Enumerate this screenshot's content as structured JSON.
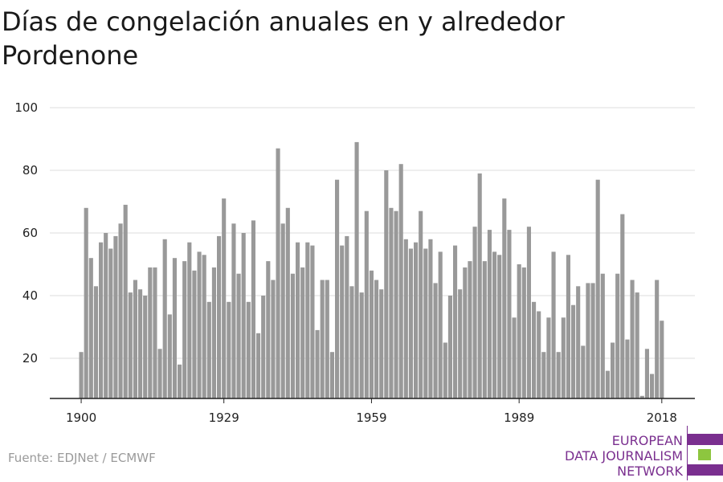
{
  "title": "Días de congelación anuales en y alrededor Pordenone",
  "source": "Fuente: EDJNet / ECMWF",
  "logo": {
    "lines": [
      "EUROPEAN",
      "DATA JOURNALISM",
      "NETWORK"
    ],
    "colors": {
      "purple": "#7a2f8f",
      "green": "#8dc63f"
    }
  },
  "colors": {
    "bar": "#999999",
    "grid": "#dddddd",
    "axis": "#222222"
  },
  "chart_data": {
    "type": "bar",
    "title": "Días de congelación anuales en y alrededor Pordenone",
    "xlabel": "",
    "ylabel": "",
    "ylim": [
      7,
      100
    ],
    "yticks": [
      20,
      40,
      60,
      80,
      100
    ],
    "xticks": [
      1900,
      1929,
      1959,
      1989,
      2018
    ],
    "grid": true,
    "start_year": 1900,
    "values": [
      22,
      68,
      52,
      43,
      57,
      60,
      55,
      59,
      63,
      69,
      41,
      45,
      42,
      40,
      49,
      49,
      23,
      58,
      34,
      52,
      18,
      51,
      57,
      48,
      54,
      53,
      38,
      49,
      59,
      71,
      38,
      63,
      47,
      60,
      38,
      64,
      28,
      40,
      51,
      45,
      87,
      63,
      68,
      47,
      57,
      49,
      57,
      56,
      29,
      45,
      45,
      22,
      77,
      56,
      59,
      43,
      89,
      41,
      67,
      48,
      45,
      42,
      80,
      68,
      67,
      82,
      58,
      55,
      57,
      67,
      55,
      58,
      44,
      54,
      25,
      40,
      56,
      42,
      49,
      51,
      62,
      79,
      51,
      61,
      54,
      53,
      71,
      61,
      33,
      50,
      49,
      62,
      38,
      35,
      22,
      33,
      54,
      22,
      33,
      53,
      37,
      43,
      24,
      44,
      44,
      77,
      47,
      16,
      25,
      47,
      66,
      26,
      45,
      41,
      8,
      23,
      15,
      45,
      32
    ]
  }
}
